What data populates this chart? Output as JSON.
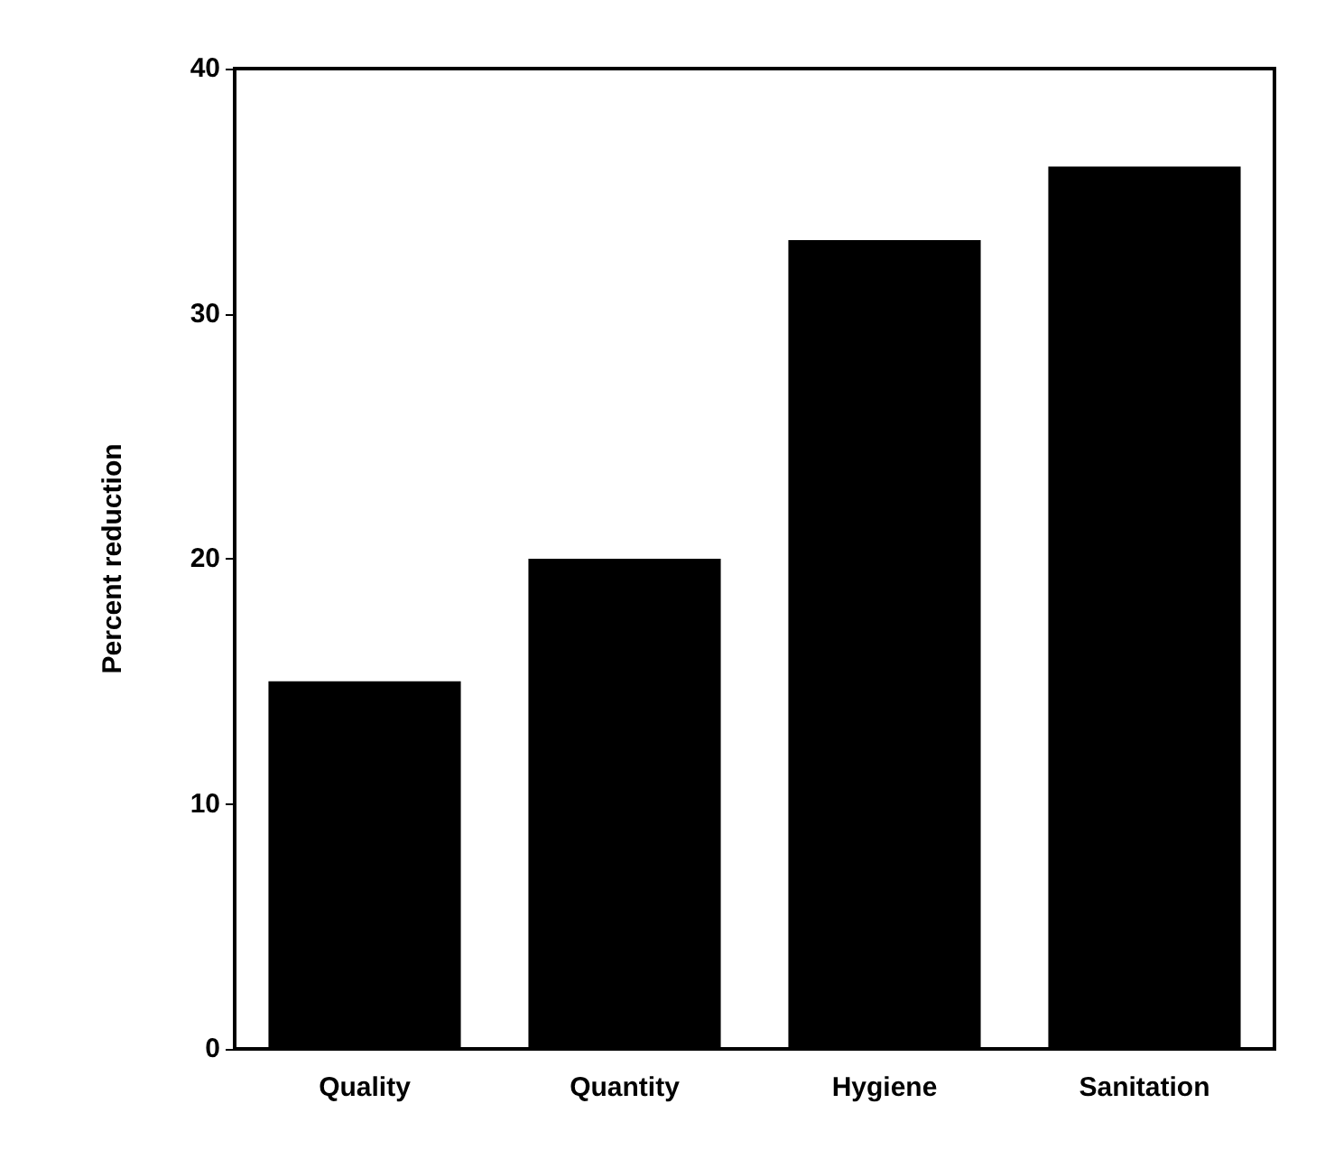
{
  "chart_data": {
    "type": "bar",
    "ylabel": "Percent reduction",
    "categories": [
      "Quality",
      "Quantity",
      "Hygiene",
      "Sanitation"
    ],
    "values": [
      15,
      20,
      33,
      36
    ],
    "color": "#000000",
    "ylim": [
      0,
      40
    ],
    "yticks": [
      0,
      10,
      20,
      30,
      40
    ],
    "grid": false
  }
}
